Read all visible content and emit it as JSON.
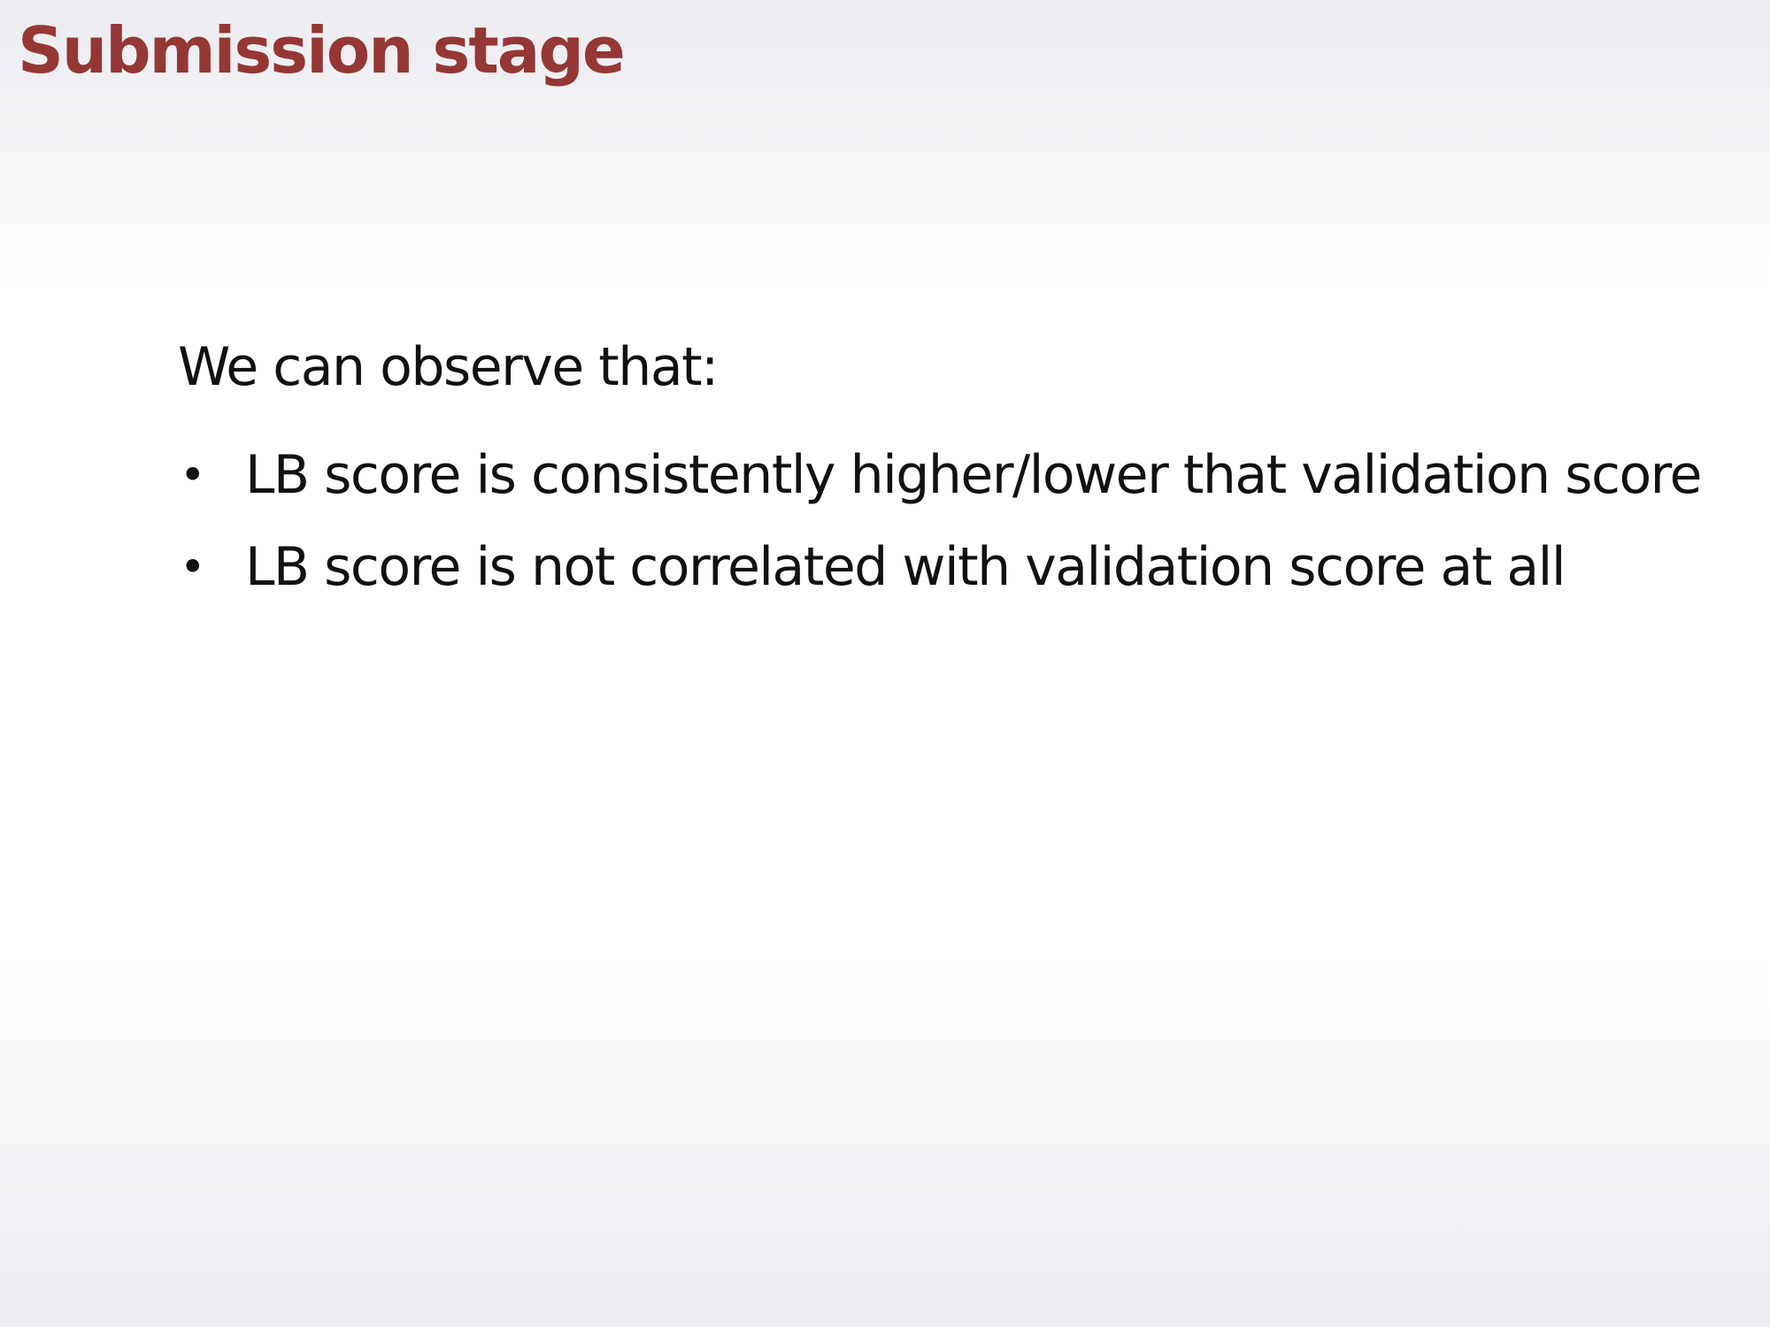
{
  "slide": {
    "title": "Submission stage",
    "intro": "We can observe that:",
    "bullets": [
      "LB score is consistently higher/lower that validation score",
      "LB score is not correlated with validation score at all"
    ],
    "bullet_glyph": "•",
    "colors": {
      "title": "#953735",
      "text": "#111111",
      "background_edge": "#ebebf0",
      "background_center": "#ffffff"
    }
  }
}
